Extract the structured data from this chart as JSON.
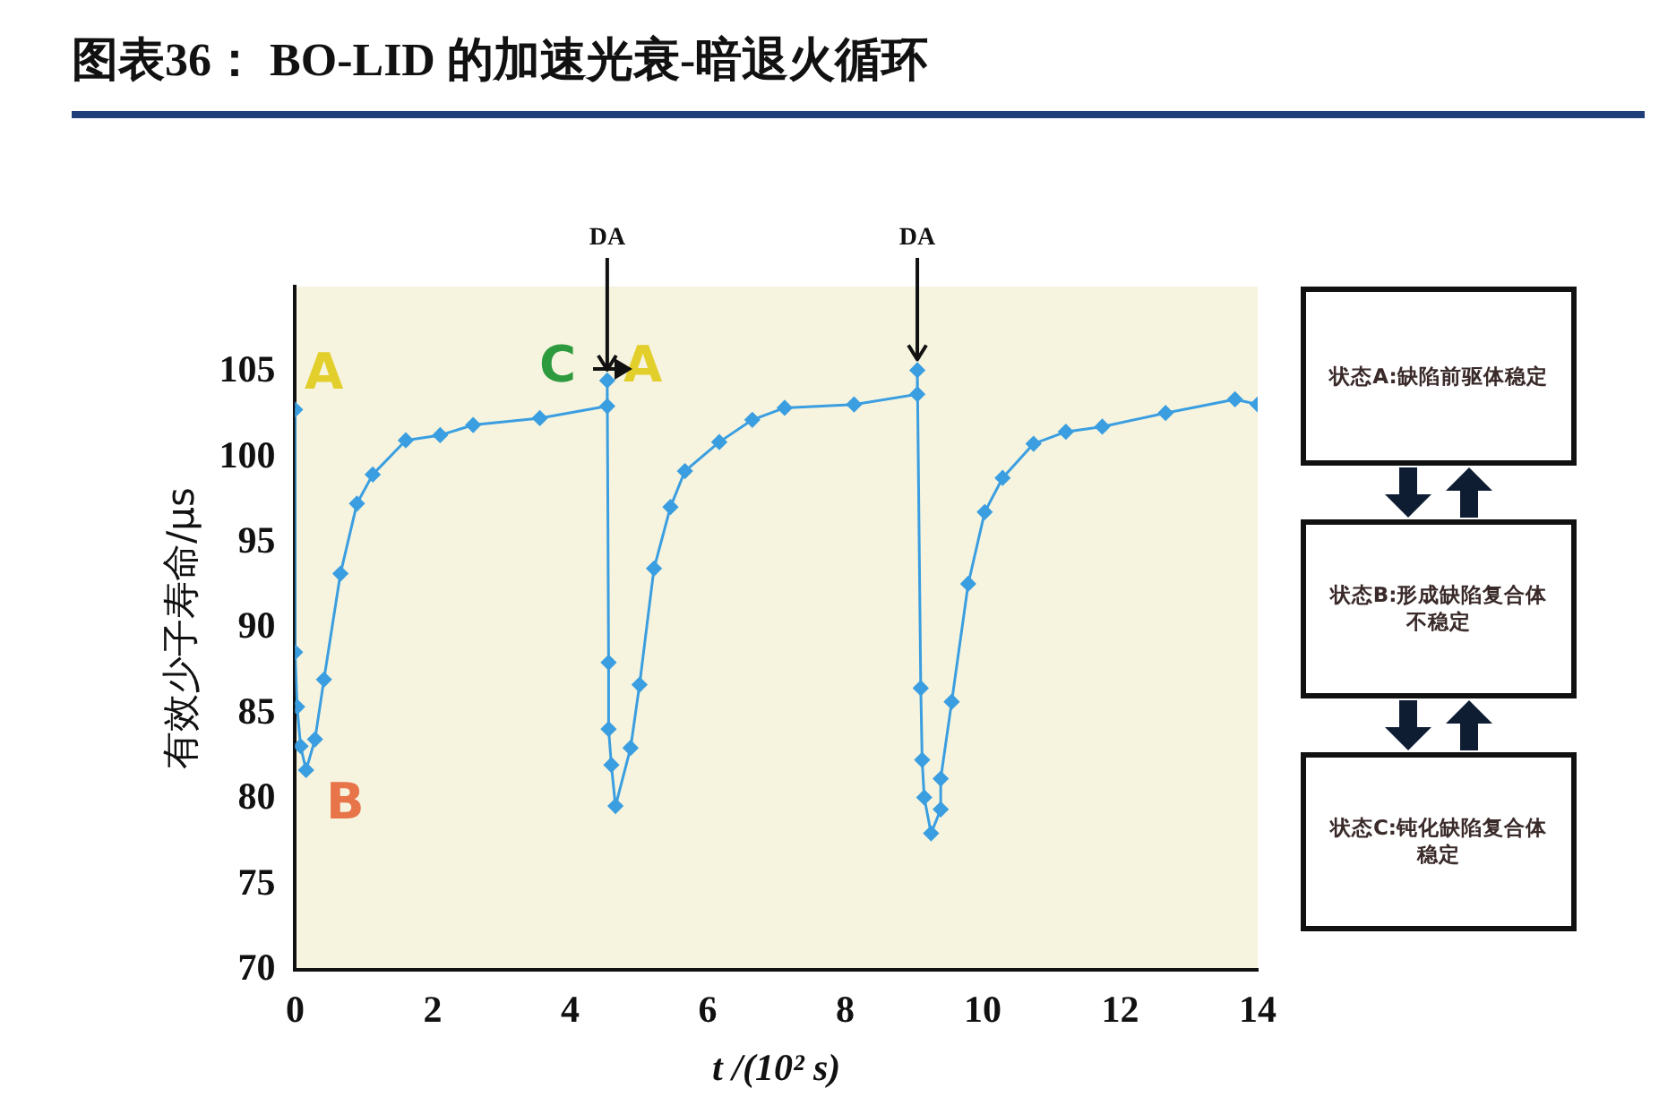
{
  "chart_data": {
    "type": "line",
    "title": "图表36：  BO-LID 的加速光衰-暗退火循环",
    "xlabel": "t /(10² s)",
    "ylabel": "有效少子寿命/μs",
    "xlim": [
      0,
      14
    ],
    "xticks": [
      0,
      2,
      4,
      6,
      8,
      10,
      12,
      14
    ],
    "ylim": [
      70,
      110
    ],
    "yticks": [
      70,
      75,
      80,
      85,
      90,
      95,
      100,
      105
    ],
    "grid": false,
    "legend": false,
    "marker": "diamond",
    "line_style": "solid",
    "series": [
      {
        "color": "#3a9ee0",
        "x": [
          0,
          0,
          0.03,
          0.08,
          0.16,
          0.29,
          0.42,
          0.66,
          0.9,
          1.13,
          1.61,
          2.11,
          2.59,
          3.56,
          4.54,
          4.54,
          4.56,
          4.56,
          4.6,
          4.66,
          4.88,
          5.01,
          5.22,
          5.46,
          5.67,
          6.17,
          6.65,
          7.12,
          8.13,
          9.05,
          9.05,
          9.1,
          9.12,
          9.15,
          9.25,
          9.39,
          9.39,
          9.55,
          9.79,
          10.03,
          10.29,
          10.74,
          11.21,
          11.74,
          12.66,
          13.67,
          14
        ],
        "values": [
          102.8,
          88.6,
          85.4,
          83.1,
          81.7,
          83.5,
          87,
          93.2,
          97.3,
          99,
          101,
          101.3,
          101.9,
          102.3,
          103,
          104.5,
          88,
          84.1,
          82,
          79.6,
          83,
          86.7,
          93.5,
          97.1,
          99.2,
          100.9,
          102.2,
          102.9,
          103.1,
          103.7,
          105.1,
          86.5,
          82.3,
          80.1,
          78,
          79.4,
          81.2,
          85.7,
          92.6,
          96.8,
          98.8,
          100.8,
          101.5,
          101.8,
          102.6,
          103.4,
          103.1
        ]
      }
    ],
    "annotations": [
      "A",
      "B",
      "C",
      "A",
      {
        "text": "DA",
        "x": 4.54,
        "y": 104.5
      },
      {
        "text": "DA",
        "x": 9.05,
        "y": 105.1
      },
      "状态A:缺陷前驱体稳定",
      "状态B:形成缺陷复合体不稳定",
      "状态C:钝化缺陷复合体稳定"
    ]
  }
}
